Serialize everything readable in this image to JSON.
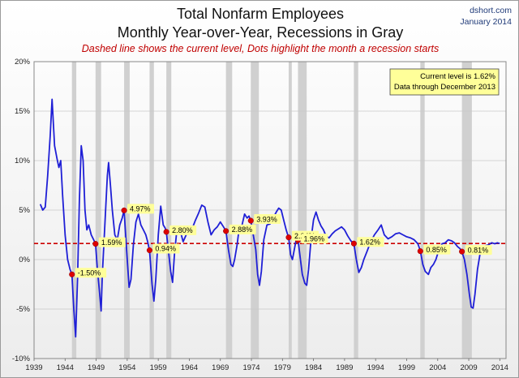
{
  "header": {
    "title_line1": "Total Nonfarm Employees",
    "title_line2": "Monthly Year-over-Year, Recessions in Gray",
    "subtitle": "Dashed line shows the current level, Dots highlight the month a recession starts",
    "source": "dshort.com",
    "source_date": "January 2014"
  },
  "info_box": {
    "line1": "Current level is 1.62%",
    "line2": "Data through December 2013"
  },
  "colors": {
    "line": "#1f1fd6",
    "dashed": "#cc0000",
    "dots": "#dd0000",
    "recession": "#d0d0d0",
    "label_bg": "#ffff99"
  },
  "chart_data": {
    "type": "line",
    "title": "Total Nonfarm Employees",
    "xlim": [
      1939,
      2015
    ],
    "ylim": [
      -10,
      20
    ],
    "xticks": [
      "1939",
      "1944",
      "1949",
      "1954",
      "1959",
      "1964",
      "1969",
      "1974",
      "1979",
      "1984",
      "1989",
      "1994",
      "1999",
      "2004",
      "2009",
      "2014"
    ],
    "yticks": [
      "-10%",
      "-5%",
      "0%",
      "5%",
      "10%",
      "15%",
      "20%"
    ],
    "y_tick_values": [
      -10,
      -5,
      0,
      5,
      10,
      15,
      20
    ],
    "current_level": 1.62,
    "grid": "horizontal",
    "recessions": [
      [
        1945.1,
        1945.8
      ],
      [
        1948.9,
        1949.8
      ],
      [
        1953.5,
        1954.4
      ],
      [
        1957.6,
        1958.3
      ],
      [
        1960.3,
        1961.1
      ],
      [
        1969.9,
        1970.9
      ],
      [
        1973.9,
        1975.2
      ],
      [
        1980.0,
        1980.5
      ],
      [
        1981.5,
        1982.9
      ],
      [
        1990.5,
        1991.2
      ],
      [
        2001.2,
        2001.9
      ],
      [
        2007.9,
        2009.5
      ]
    ],
    "recession_starts": [
      {
        "x": 1945.1,
        "y": -1.5,
        "label": "-1.50%"
      },
      {
        "x": 1948.9,
        "y": 1.59,
        "label": "1.59%"
      },
      {
        "x": 1953.5,
        "y": 4.97,
        "label": "4.97%"
      },
      {
        "x": 1957.6,
        "y": 0.94,
        "label": "0.94%"
      },
      {
        "x": 1960.3,
        "y": 2.8,
        "label": "2.80%"
      },
      {
        "x": 1969.9,
        "y": 2.88,
        "label": "2.88%"
      },
      {
        "x": 1973.9,
        "y": 3.93,
        "label": "3.93%"
      },
      {
        "x": 1980.0,
        "y": 2.24,
        "label": "2.24%"
      },
      {
        "x": 1981.5,
        "y": 1.96,
        "label": "1.96%"
      },
      {
        "x": 1990.5,
        "y": 1.62,
        "label": "1.62%"
      },
      {
        "x": 2001.2,
        "y": 0.85,
        "label": "0.85%"
      },
      {
        "x": 2007.9,
        "y": 0.81,
        "label": "0.81%"
      }
    ],
    "series": [
      {
        "points": [
          [
            1940.0,
            5.6
          ],
          [
            1940.4,
            5.0
          ],
          [
            1940.8,
            5.3
          ],
          [
            1941.2,
            8.5
          ],
          [
            1941.6,
            12.5
          ],
          [
            1941.9,
            16.2
          ],
          [
            1942.3,
            11.5
          ],
          [
            1942.7,
            10.2
          ],
          [
            1943.0,
            9.3
          ],
          [
            1943.3,
            10.0
          ],
          [
            1943.6,
            6.5
          ],
          [
            1944.0,
            2.5
          ],
          [
            1944.4,
            0.0
          ],
          [
            1944.8,
            -1.0
          ],
          [
            1945.1,
            -1.5
          ],
          [
            1945.4,
            -5.0
          ],
          [
            1945.7,
            -7.8
          ],
          [
            1946.0,
            -2.0
          ],
          [
            1946.3,
            6.0
          ],
          [
            1946.6,
            11.5
          ],
          [
            1946.9,
            10.0
          ],
          [
            1947.2,
            5.0
          ],
          [
            1947.5,
            3.0
          ],
          [
            1947.8,
            3.5
          ],
          [
            1948.2,
            2.5
          ],
          [
            1948.6,
            2.0
          ],
          [
            1948.9,
            1.6
          ],
          [
            1949.2,
            -1.0
          ],
          [
            1949.5,
            -3.0
          ],
          [
            1949.8,
            -5.2
          ],
          [
            1950.0,
            -1.5
          ],
          [
            1950.4,
            3.5
          ],
          [
            1950.8,
            8.5
          ],
          [
            1951.0,
            9.8
          ],
          [
            1951.3,
            7.5
          ],
          [
            1951.6,
            5.0
          ],
          [
            1952.0,
            2.5
          ],
          [
            1952.4,
            2.0
          ],
          [
            1952.8,
            3.5
          ],
          [
            1953.2,
            4.2
          ],
          [
            1953.5,
            5.0
          ],
          [
            1953.9,
            1.0
          ],
          [
            1954.3,
            -2.8
          ],
          [
            1954.6,
            -2.0
          ],
          [
            1955.0,
            1.5
          ],
          [
            1955.4,
            3.8
          ],
          [
            1955.8,
            4.6
          ],
          [
            1956.2,
            3.5
          ],
          [
            1956.6,
            3.0
          ],
          [
            1957.0,
            2.5
          ],
          [
            1957.3,
            1.8
          ],
          [
            1957.6,
            0.9
          ],
          [
            1958.0,
            -2.5
          ],
          [
            1958.3,
            -4.2
          ],
          [
            1958.6,
            -2.0
          ],
          [
            1959.0,
            2.5
          ],
          [
            1959.4,
            5.4
          ],
          [
            1959.8,
            3.5
          ],
          [
            1960.1,
            3.2
          ],
          [
            1960.3,
            2.8
          ],
          [
            1960.7,
            0.5
          ],
          [
            1961.0,
            -1.2
          ],
          [
            1961.3,
            -2.3
          ],
          [
            1961.6,
            0.5
          ],
          [
            1962.0,
            3.0
          ],
          [
            1962.5,
            3.0
          ],
          [
            1963.0,
            1.8
          ],
          [
            1963.5,
            2.5
          ],
          [
            1964.0,
            2.8
          ],
          [
            1964.5,
            3.2
          ],
          [
            1965.0,
            4.0
          ],
          [
            1965.5,
            4.7
          ],
          [
            1966.0,
            5.5
          ],
          [
            1966.5,
            5.3
          ],
          [
            1967.0,
            3.8
          ],
          [
            1967.5,
            2.5
          ],
          [
            1968.0,
            3.0
          ],
          [
            1968.5,
            3.3
          ],
          [
            1969.0,
            3.8
          ],
          [
            1969.5,
            3.3
          ],
          [
            1969.9,
            2.9
          ],
          [
            1970.3,
            1.0
          ],
          [
            1970.7,
            -0.5
          ],
          [
            1971.0,
            -0.7
          ],
          [
            1971.3,
            0.0
          ],
          [
            1971.7,
            1.5
          ],
          [
            1972.0,
            3.0
          ],
          [
            1972.5,
            3.5
          ],
          [
            1972.9,
            4.6
          ],
          [
            1973.3,
            4.2
          ],
          [
            1973.6,
            4.4
          ],
          [
            1973.9,
            3.9
          ],
          [
            1974.3,
            2.5
          ],
          [
            1974.7,
            1.0
          ],
          [
            1975.0,
            -1.5
          ],
          [
            1975.3,
            -2.6
          ],
          [
            1975.6,
            -1.2
          ],
          [
            1976.0,
            2.0
          ],
          [
            1976.5,
            3.5
          ],
          [
            1977.0,
            3.6
          ],
          [
            1977.5,
            4.2
          ],
          [
            1978.0,
            4.8
          ],
          [
            1978.4,
            5.2
          ],
          [
            1978.8,
            5.0
          ],
          [
            1979.2,
            4.0
          ],
          [
            1979.6,
            3.0
          ],
          [
            1980.0,
            2.2
          ],
          [
            1980.3,
            0.5
          ],
          [
            1980.6,
            0.0
          ],
          [
            1980.9,
            1.0
          ],
          [
            1981.2,
            2.0
          ],
          [
            1981.5,
            2.0
          ],
          [
            1981.9,
            0.0
          ],
          [
            1982.2,
            -1.5
          ],
          [
            1982.6,
            -2.4
          ],
          [
            1982.9,
            -2.6
          ],
          [
            1983.2,
            -1.0
          ],
          [
            1983.6,
            2.0
          ],
          [
            1984.0,
            4.0
          ],
          [
            1984.4,
            4.8
          ],
          [
            1984.8,
            4.0
          ],
          [
            1985.2,
            3.4
          ],
          [
            1985.6,
            3.0
          ],
          [
            1986.0,
            2.4
          ],
          [
            1986.5,
            2.2
          ],
          [
            1987.0,
            2.6
          ],
          [
            1987.5,
            2.9
          ],
          [
            1988.0,
            3.1
          ],
          [
            1988.5,
            3.3
          ],
          [
            1989.0,
            3.0
          ],
          [
            1989.5,
            2.4
          ],
          [
            1990.0,
            1.9
          ],
          [
            1990.5,
            1.6
          ],
          [
            1990.9,
            0.0
          ],
          [
            1991.3,
            -1.3
          ],
          [
            1991.7,
            -0.8
          ],
          [
            1992.1,
            0.0
          ],
          [
            1992.6,
            0.8
          ],
          [
            1993.2,
            1.8
          ],
          [
            1993.8,
            2.5
          ],
          [
            1994.4,
            3.0
          ],
          [
            1994.9,
            3.5
          ],
          [
            1995.4,
            2.5
          ],
          [
            1996.0,
            2.1
          ],
          [
            1996.6,
            2.3
          ],
          [
            1997.2,
            2.6
          ],
          [
            1997.8,
            2.7
          ],
          [
            1998.4,
            2.5
          ],
          [
            1999.0,
            2.3
          ],
          [
            1999.6,
            2.2
          ],
          [
            2000.2,
            2.0
          ],
          [
            2000.8,
            1.6
          ],
          [
            2001.2,
            0.9
          ],
          [
            2001.6,
            -0.5
          ],
          [
            2002.0,
            -1.2
          ],
          [
            2002.5,
            -1.5
          ],
          [
            2002.9,
            -0.8
          ],
          [
            2003.3,
            -0.5
          ],
          [
            2003.7,
            0.0
          ],
          [
            2004.2,
            1.0
          ],
          [
            2004.7,
            1.6
          ],
          [
            2005.2,
            1.7
          ],
          [
            2005.7,
            2.0
          ],
          [
            2006.2,
            1.9
          ],
          [
            2006.7,
            1.7
          ],
          [
            2007.2,
            1.3
          ],
          [
            2007.6,
            1.1
          ],
          [
            2007.9,
            0.8
          ],
          [
            2008.3,
            0.0
          ],
          [
            2008.7,
            -1.5
          ],
          [
            2009.1,
            -3.5
          ],
          [
            2009.4,
            -4.8
          ],
          [
            2009.7,
            -4.9
          ],
          [
            2010.0,
            -3.5
          ],
          [
            2010.4,
            -1.0
          ],
          [
            2010.8,
            0.5
          ],
          [
            2011.2,
            1.0
          ],
          [
            2011.7,
            1.4
          ],
          [
            2012.2,
            1.5
          ],
          [
            2012.7,
            1.7
          ],
          [
            2013.2,
            1.6
          ],
          [
            2013.6,
            1.7
          ],
          [
            2014.0,
            1.62
          ]
        ]
      }
    ]
  }
}
